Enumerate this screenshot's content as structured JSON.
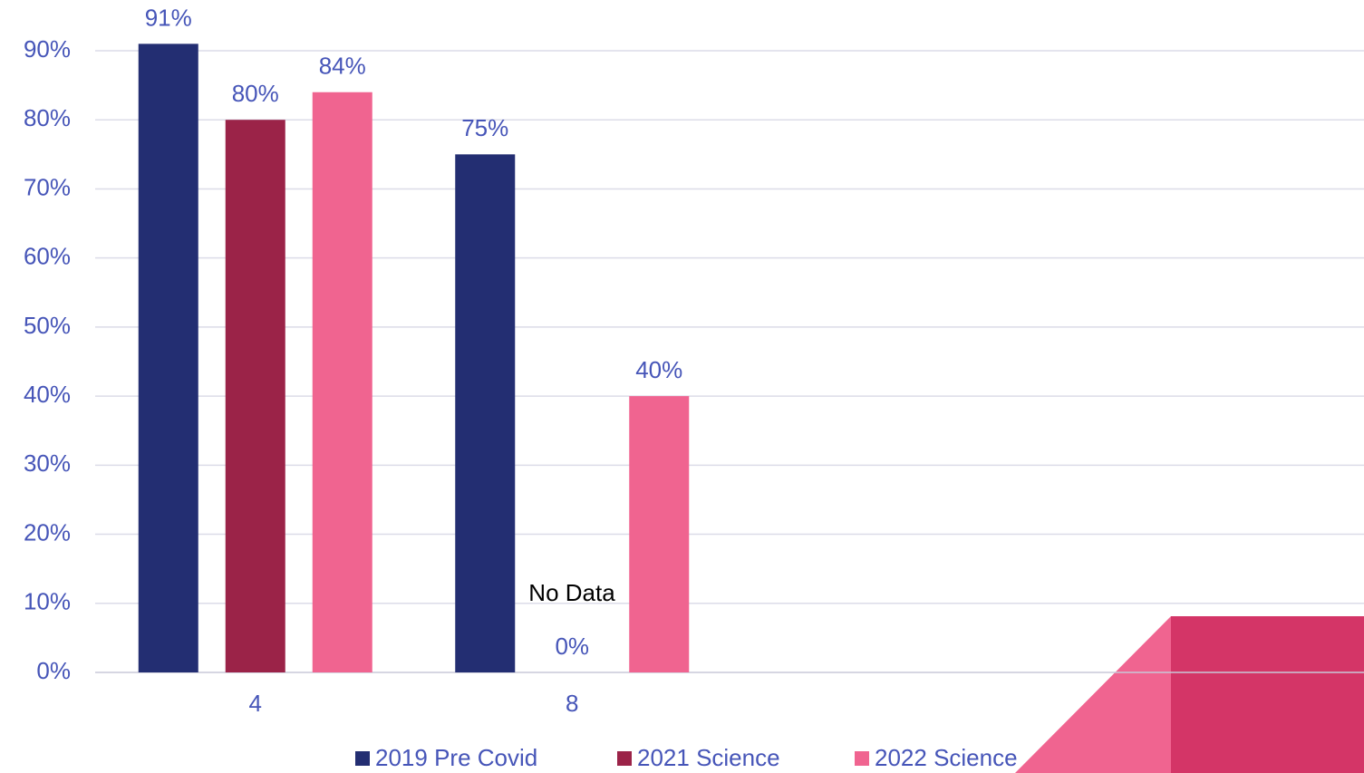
{
  "chart_data": {
    "type": "bar",
    "categories": [
      "4",
      "8",
      null,
      null
    ],
    "series": [
      {
        "name": "2019 Pre Covid",
        "color": "#232e72",
        "values": [
          91,
          75,
          null,
          null
        ],
        "value_labels": [
          "91%",
          "75%",
          null,
          null
        ]
      },
      {
        "name": "2021 Science",
        "color": "#9b2348",
        "values": [
          80,
          0,
          null,
          null
        ],
        "value_labels": [
          "80%",
          "0%",
          null,
          null
        ]
      },
      {
        "name": "2022 Science",
        "color": "#f06490",
        "values": [
          84,
          40,
          null,
          null
        ],
        "value_labels": [
          "84%",
          "40%",
          null,
          null
        ]
      }
    ],
    "annotations": [
      "No Data"
    ],
    "ylim": [
      0,
      90
    ],
    "yticks": [
      {
        "value": 0,
        "label": "0%"
      },
      {
        "value": 10,
        "label": "10%"
      },
      {
        "value": 20,
        "label": "20%"
      },
      {
        "value": 30,
        "label": "30%"
      },
      {
        "value": 40,
        "label": "40%"
      },
      {
        "value": 50,
        "label": "50%"
      },
      {
        "value": 60,
        "label": "60%"
      },
      {
        "value": 70,
        "label": "70%"
      },
      {
        "value": 80,
        "label": "80%"
      },
      {
        "value": 90,
        "label": "90%"
      }
    ],
    "grid": true,
    "legend": "bottom"
  }
}
